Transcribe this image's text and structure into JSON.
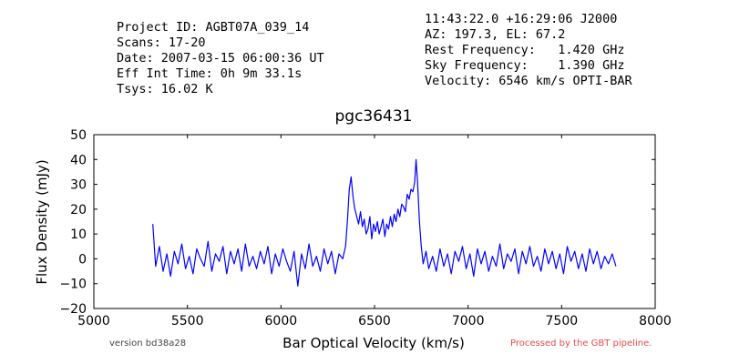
{
  "header": {
    "left_lines": [
      "Project ID: AGBT07A_039_14",
      "Scans: 17-20",
      "Date: 2007-03-15 06:00:36 UT",
      "Eff Int Time: 0h 9m 33.1s",
      "Tsys: 16.02 K"
    ],
    "right_lines": [
      "11:43:22.0 +16:29:06 J2000",
      "AZ: 197.3, EL: 67.2",
      "Rest Frequency:   1.420 GHz",
      "Sky Frequency:    1.390 GHz",
      "Velocity: 6546 km/s OPTI-BAR"
    ]
  },
  "footer": {
    "version": "version bd38a28",
    "processed": "Processed by the GBT pipeline.",
    "processed_color": "#e84a4a"
  },
  "chart_data": {
    "type": "line",
    "title": "pgc36431",
    "xlabel": "Bar Optical Velocity (km/s)",
    "ylabel": "Flux Density (mJy)",
    "xlim": [
      5000,
      8000
    ],
    "ylim": [
      -20,
      50
    ],
    "xticks": [
      5000,
      5500,
      6000,
      6500,
      7000,
      7500,
      8000
    ],
    "yticks": [
      -20,
      -10,
      0,
      10,
      20,
      30,
      40,
      50
    ],
    "grid": false,
    "line_color": "#0000ff",
    "series": [
      {
        "x": [
          5315,
          5330,
          5350,
          5370,
          5390,
          5410,
          5430,
          5450,
          5470,
          5490,
          5510,
          5530,
          5550,
          5570,
          5590,
          5610,
          5630,
          5650,
          5670,
          5690,
          5710,
          5730,
          5750,
          5770,
          5790,
          5810,
          5830,
          5850,
          5870,
          5890,
          5910,
          5930,
          5950,
          5970,
          5990,
          6010,
          6030,
          6050,
          6070,
          6090,
          6110,
          6130,
          6150,
          6170,
          6190,
          6210,
          6230,
          6250,
          6270,
          6290,
          6310,
          6330,
          6345,
          6355,
          6365,
          6375,
          6385,
          6395,
          6405,
          6415,
          6425,
          6435,
          6445,
          6455,
          6465,
          6475,
          6485,
          6495,
          6505,
          6515,
          6525,
          6535,
          6545,
          6555,
          6565,
          6575,
          6585,
          6595,
          6605,
          6615,
          6625,
          6635,
          6645,
          6655,
          6665,
          6675,
          6685,
          6695,
          6705,
          6715,
          6722,
          6730,
          6740,
          6750,
          6760,
          6775,
          6790,
          6810,
          6830,
          6850,
          6870,
          6890,
          6910,
          6930,
          6950,
          6970,
          6990,
          7010,
          7030,
          7050,
          7070,
          7090,
          7110,
          7130,
          7150,
          7170,
          7190,
          7210,
          7230,
          7250,
          7270,
          7290,
          7310,
          7330,
          7350,
          7370,
          7390,
          7410,
          7430,
          7450,
          7470,
          7490,
          7510,
          7530,
          7550,
          7570,
          7590,
          7610,
          7630,
          7650,
          7670,
          7690,
          7710,
          7730,
          7750,
          7770,
          7790
        ],
        "y": [
          14,
          -3,
          5,
          -5,
          2,
          -7,
          3,
          -2,
          6,
          -4,
          1,
          -6,
          4,
          0,
          -3,
          7,
          -5,
          2,
          -1,
          5,
          -6,
          3,
          -2,
          4,
          -5,
          6,
          -3,
          1,
          -4,
          3,
          -2,
          5,
          -6,
          2,
          -3,
          4,
          -1,
          -5,
          3,
          -11,
          2,
          -4,
          6,
          -3,
          1,
          -5,
          4,
          -2,
          3,
          -6,
          2,
          0,
          5,
          15,
          28,
          33,
          25,
          20,
          17,
          14,
          19,
          13,
          16,
          10,
          12,
          17,
          8,
          14,
          11,
          15,
          10,
          13,
          16,
          9,
          14,
          12,
          17,
          13,
          18,
          15,
          20,
          17,
          22,
          21,
          19,
          26,
          24,
          28,
          27,
          31,
          40,
          31,
          15,
          5,
          -2,
          3,
          -4,
          1,
          -5,
          4,
          -3,
          2,
          -6,
          3,
          -1,
          5,
          -4,
          2,
          -7,
          4,
          -2,
          3,
          -5,
          1,
          -3,
          6,
          -4,
          2,
          -1,
          4,
          -6,
          3,
          -2,
          5,
          -3,
          1,
          -5,
          4,
          -2,
          3,
          -4,
          2,
          -6,
          5,
          -1,
          3,
          -4,
          2,
          -5,
          4,
          -2,
          3,
          -4,
          1,
          -2,
          2,
          -3
        ]
      }
    ]
  }
}
